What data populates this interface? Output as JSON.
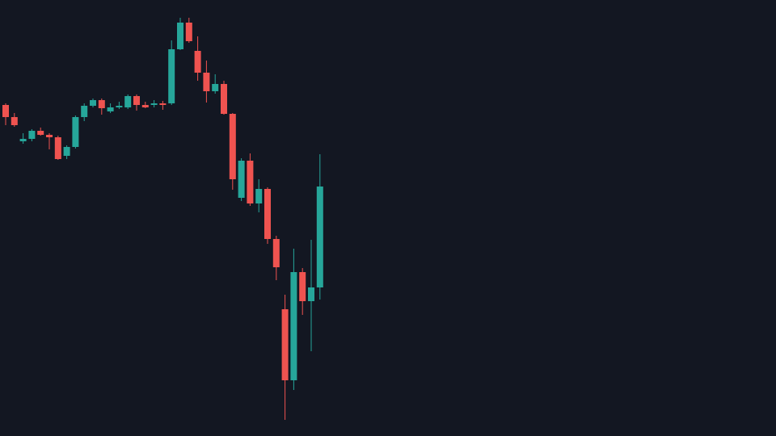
{
  "chart_data": {
    "type": "candlestick",
    "up_color": "#26a69a",
    "down_color": "#ef5350",
    "background": "#131722",
    "ylim": [
      0,
      540
    ],
    "open": [
      410,
      395,
      365,
      368,
      378,
      373,
      370,
      347,
      358,
      395,
      409,
      416,
      402,
      407,
      407,
      421,
      410,
      410,
      412,
      412,
      479,
      512,
      477,
      450,
      427,
      436,
      399,
      295,
      341,
      288,
      306,
      244,
      157,
      69,
      203,
      167,
      184
    ],
    "high": [
      412,
      400,
      375,
      380,
      382,
      375,
      372,
      360,
      397,
      412,
      418,
      418,
      412,
      414,
      423,
      423,
      414,
      416,
      415,
      490,
      518,
      518,
      495,
      465,
      448,
      440,
      400,
      344,
      350,
      318,
      308,
      248,
      175,
      232,
      208,
      243,
      349
    ],
    "low": [
      385,
      383,
      362,
      365,
      372,
      355,
      342,
      343,
      356,
      390,
      407,
      398,
      400,
      405,
      405,
      403,
      406,
      407,
      404,
      410,
      478,
      487,
      440,
      413,
      424,
      398,
      305,
      291,
      285,
      277,
      238,
      193,
      20,
      57,
      150,
      105,
      169
    ],
    "close": [
      395,
      385,
      368,
      378,
      373,
      370,
      343,
      358,
      395,
      409,
      416,
      406,
      407,
      409,
      421,
      410,
      407,
      412,
      410,
      479,
      512,
      489,
      450,
      427,
      436,
      399,
      318,
      341,
      288,
      306,
      244,
      209,
      69,
      203,
      167,
      184,
      309
    ]
  }
}
